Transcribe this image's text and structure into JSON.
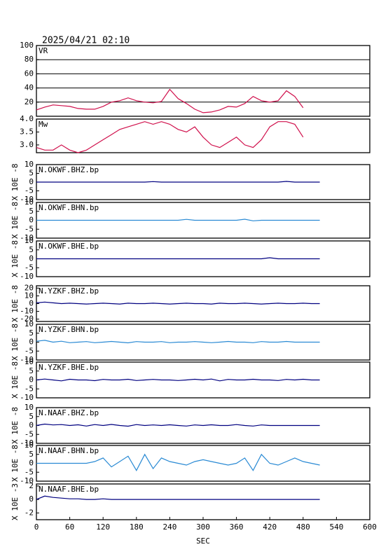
{
  "chart_data": [
    {
      "type": "line",
      "title": "2025/04/21 02:10",
      "label": "VR",
      "color": "#d0104c",
      "grid": true,
      "xlim": [
        0,
        600
      ],
      "ylim": [
        0,
        100
      ],
      "yticks": [
        20,
        40,
        60,
        80,
        100
      ],
      "x": [
        0,
        15,
        30,
        45,
        60,
        75,
        90,
        105,
        120,
        135,
        150,
        165,
        180,
        195,
        210,
        225,
        240,
        255,
        270,
        285,
        300,
        315,
        330,
        345,
        360,
        375,
        390,
        405,
        420,
        435,
        450,
        465,
        480
      ],
      "values": [
        9,
        13,
        16,
        15,
        14,
        11,
        10,
        10,
        14,
        20,
        22,
        26,
        22,
        20,
        19,
        21,
        38,
        25,
        18,
        10,
        5,
        6,
        9,
        14,
        13,
        18,
        28,
        22,
        20,
        22,
        36,
        28,
        12
      ]
    },
    {
      "type": "line",
      "label": "Mw",
      "color": "#d0104c",
      "grid": false,
      "xlim": [
        0,
        600
      ],
      "ylim": [
        2.7,
        4.0
      ],
      "yticks": [
        {
          "value": 3,
          "label": "3.0"
        },
        3.5,
        {
          "value": 4,
          "label": "4.0"
        }
      ],
      "x": [
        0,
        15,
        30,
        45,
        60,
        75,
        90,
        105,
        120,
        135,
        150,
        165,
        180,
        195,
        210,
        225,
        240,
        255,
        270,
        285,
        300,
        315,
        330,
        345,
        360,
        375,
        390,
        405,
        420,
        435,
        450,
        465,
        480
      ],
      "values": [
        2.9,
        2.8,
        2.8,
        3.0,
        2.8,
        2.7,
        2.8,
        3.0,
        3.2,
        3.4,
        3.6,
        3.7,
        3.8,
        3.9,
        3.8,
        3.9,
        3.8,
        3.6,
        3.5,
        3.7,
        3.3,
        3.0,
        2.9,
        3.1,
        3.3,
        3.0,
        2.9,
        3.2,
        3.7,
        3.9,
        3.9,
        3.8,
        3.3
      ]
    },
    {
      "type": "line",
      "label": "N.OKWF.BHZ.bp",
      "ylabel": "X 10E -8",
      "color": "#000080",
      "xlim": [
        0,
        600
      ],
      "ylim": [
        -10,
        10
      ],
      "yticks": [
        -10,
        -5,
        0,
        5,
        10
      ],
      "x": [
        0,
        15,
        30,
        45,
        60,
        75,
        90,
        105,
        120,
        135,
        150,
        165,
        180,
        195,
        210,
        225,
        240,
        255,
        270,
        285,
        300,
        315,
        330,
        345,
        360,
        375,
        390,
        405,
        420,
        435,
        450,
        465,
        480,
        495,
        510
      ],
      "values": [
        0,
        0,
        0,
        0,
        0,
        0,
        0,
        0,
        0,
        0,
        0,
        0,
        0,
        0,
        0.3,
        0,
        0,
        0,
        0,
        0,
        0,
        0,
        0,
        0,
        0,
        0,
        0,
        0,
        0,
        0,
        0.4,
        0,
        0,
        0,
        0
      ]
    },
    {
      "type": "line",
      "label": "N.OKWF.BHN.bp",
      "ylabel": "X 10E -8",
      "color": "#2a8ad4",
      "xlim": [
        0,
        600
      ],
      "ylim": [
        -10,
        10
      ],
      "yticks": [
        -10,
        -5,
        0,
        5,
        10
      ],
      "x": [
        0,
        15,
        30,
        45,
        60,
        75,
        90,
        105,
        120,
        135,
        150,
        165,
        180,
        195,
        210,
        225,
        240,
        255,
        270,
        285,
        300,
        315,
        330,
        345,
        360,
        375,
        390,
        405,
        420,
        435,
        450,
        465,
        480,
        495,
        510
      ],
      "values": [
        0,
        0,
        0,
        0,
        0,
        0,
        0,
        0,
        0,
        0,
        0,
        0,
        0,
        0,
        0,
        0,
        0,
        0,
        0.5,
        0,
        0,
        0,
        0,
        0,
        0,
        0.6,
        -0.3,
        0,
        0,
        0,
        0,
        0,
        0,
        0,
        0
      ]
    },
    {
      "type": "line",
      "label": "N.OKWF.BHE.bp",
      "ylabel": "X 10E -8",
      "color": "#000080",
      "xlim": [
        0,
        600
      ],
      "ylim": [
        -10,
        10
      ],
      "yticks": [
        -10,
        -5,
        0,
        5,
        10
      ],
      "x": [
        0,
        15,
        30,
        45,
        60,
        75,
        90,
        105,
        120,
        135,
        150,
        165,
        180,
        195,
        210,
        225,
        240,
        255,
        270,
        285,
        300,
        315,
        330,
        345,
        360,
        375,
        390,
        405,
        420,
        435,
        450,
        465,
        480,
        495,
        510
      ],
      "values": [
        0,
        0,
        0,
        0,
        0,
        0,
        0,
        0,
        0,
        0,
        0,
        0,
        0,
        0,
        0,
        0,
        0,
        0,
        0,
        0,
        0,
        0,
        0,
        0,
        0,
        0,
        0,
        0,
        0.6,
        0,
        0,
        0,
        0,
        0,
        0
      ]
    },
    {
      "type": "line",
      "label": "N.YZKF.BHZ.bp",
      "ylabel": "X 10E -8",
      "color": "#000080",
      "xlim": [
        0,
        600
      ],
      "ylim": [
        -23,
        23
      ],
      "yticks": [
        -20,
        -10,
        0,
        10,
        20
      ],
      "x": [
        0,
        15,
        30,
        45,
        60,
        75,
        90,
        105,
        120,
        135,
        150,
        165,
        180,
        195,
        210,
        225,
        240,
        255,
        270,
        285,
        300,
        315,
        330,
        345,
        360,
        375,
        390,
        405,
        420,
        435,
        450,
        465,
        480,
        495,
        510
      ],
      "values": [
        1,
        2,
        1,
        0,
        0.5,
        0,
        -0.5,
        0,
        0.5,
        0,
        -0.5,
        0.5,
        0,
        0,
        0.5,
        0,
        -0.5,
        0,
        0.5,
        0,
        0,
        -0.5,
        0.5,
        0,
        0,
        0.5,
        0,
        -0.5,
        0,
        0.5,
        0,
        0,
        0.5,
        0,
        0
      ]
    },
    {
      "type": "line",
      "label": "N.YZKF.BHN.bp",
      "ylabel": "X 10E -8",
      "color": "#2a8ad4",
      "xlim": [
        0,
        600
      ],
      "ylim": [
        -10,
        10
      ],
      "yticks": [
        -10,
        -5,
        0,
        5,
        10
      ],
      "x": [
        0,
        15,
        30,
        45,
        60,
        75,
        90,
        105,
        120,
        135,
        150,
        165,
        180,
        195,
        210,
        225,
        240,
        255,
        270,
        285,
        300,
        315,
        330,
        345,
        360,
        375,
        390,
        405,
        420,
        435,
        450,
        465,
        480,
        495,
        510
      ],
      "values": [
        0.5,
        1,
        0,
        0.5,
        -0.3,
        0,
        0.3,
        -0.3,
        0,
        0.4,
        0,
        -0.4,
        0.3,
        0,
        0,
        0.3,
        -0.3,
        0,
        0,
        0.3,
        0,
        -0.3,
        0,
        0.4,
        0,
        0,
        -0.3,
        0.3,
        0,
        0,
        0.4,
        0,
        0,
        0,
        0
      ]
    },
    {
      "type": "line",
      "label": "N.YZKF.BHE.bp",
      "ylabel": "X 10E -8",
      "color": "#000080",
      "xlim": [
        0,
        600
      ],
      "ylim": [
        -10,
        10
      ],
      "yticks": [
        -10,
        -5,
        0,
        5,
        10
      ],
      "x": [
        0,
        15,
        30,
        45,
        60,
        75,
        90,
        105,
        120,
        135,
        150,
        165,
        180,
        195,
        210,
        225,
        240,
        255,
        270,
        285,
        300,
        315,
        330,
        345,
        360,
        375,
        390,
        405,
        420,
        435,
        450,
        465,
        480,
        495,
        510
      ],
      "values": [
        0,
        0.5,
        0,
        -0.5,
        0.4,
        0,
        0,
        -0.4,
        0.3,
        0,
        0,
        0.4,
        -0.3,
        0,
        0.3,
        0,
        0,
        -0.3,
        0,
        0.4,
        0,
        0.5,
        -0.5,
        0.3,
        0,
        0,
        0.4,
        0,
        0,
        -0.3,
        0.3,
        0,
        0.4,
        0,
        0
      ]
    },
    {
      "type": "line",
      "label": "N.NAAF.BHZ.bp",
      "ylabel": "X 10E -8",
      "color": "#000080",
      "xlim": [
        0,
        600
      ],
      "ylim": [
        -10,
        10
      ],
      "yticks": [
        -10,
        -5,
        0,
        5,
        10
      ],
      "x": [
        0,
        15,
        30,
        45,
        60,
        75,
        90,
        105,
        120,
        135,
        150,
        165,
        180,
        195,
        210,
        225,
        240,
        255,
        270,
        285,
        300,
        315,
        330,
        345,
        360,
        375,
        390,
        405,
        420,
        435,
        450,
        465,
        480,
        495,
        510
      ],
      "values": [
        0,
        0.8,
        0.3,
        0.5,
        0,
        0.4,
        -0.3,
        0.5,
        0,
        0.6,
        0,
        -0.4,
        0.5,
        0,
        0.3,
        0,
        0.4,
        0,
        -0.3,
        0.3,
        0,
        0.4,
        0,
        0,
        0.5,
        0,
        -0.3,
        0.3,
        0,
        0,
        0,
        0,
        0,
        0,
        0
      ]
    },
    {
      "type": "line",
      "label": "N.NAAF.BHN.bp",
      "ylabel": "X 10E -8",
      "color": "#2a8ad4",
      "xlim": [
        0,
        600
      ],
      "ylim": [
        -10,
        10
      ],
      "yticks": [
        -10,
        -5,
        0,
        5,
        10
      ],
      "x": [
        0,
        15,
        30,
        45,
        60,
        75,
        90,
        105,
        120,
        135,
        150,
        165,
        180,
        195,
        210,
        225,
        240,
        255,
        270,
        285,
        300,
        315,
        330,
        345,
        360,
        375,
        390,
        405,
        420,
        435,
        450,
        465,
        480,
        495,
        510
      ],
      "values": [
        0,
        0,
        0,
        0,
        0,
        0,
        0,
        1,
        3,
        -2,
        1,
        4,
        -4,
        5,
        -3,
        3,
        1,
        0,
        -1,
        1,
        2,
        1,
        0,
        -1,
        0,
        3,
        -4,
        5,
        0,
        -1,
        1,
        3,
        1,
        0,
        -1
      ]
    },
    {
      "type": "line",
      "label": "N.NAAF.BHE.bp",
      "ylabel": "X 10E -3",
      "color": "#000080",
      "xlim": [
        0,
        600
      ],
      "ylim": [
        -3,
        2.3
      ],
      "yticks": [
        -2,
        0,
        2
      ],
      "xlabel": "SEC",
      "xticks": [
        0,
        60,
        120,
        180,
        240,
        300,
        360,
        420,
        480,
        540,
        600
      ],
      "x": [
        0,
        15,
        30,
        45,
        60,
        75,
        90,
        105,
        120,
        135,
        150,
        165,
        180,
        195,
        210,
        225,
        240,
        255,
        270,
        285,
        300,
        315,
        330,
        345,
        360,
        375,
        390,
        405,
        420,
        435,
        450,
        465,
        480,
        495,
        510
      ],
      "values": [
        0,
        0.5,
        0.3,
        0.2,
        0.1,
        0.1,
        0,
        0,
        0.1,
        0,
        0,
        0,
        0,
        0,
        0,
        0,
        0,
        0,
        0,
        0,
        0,
        0,
        0,
        0,
        0,
        0,
        0,
        0,
        0,
        0,
        0,
        0,
        0,
        0,
        0
      ]
    }
  ]
}
